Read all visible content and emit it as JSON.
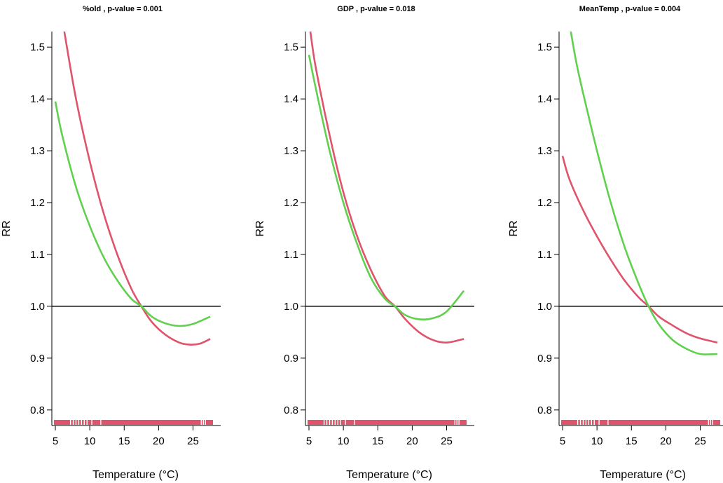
{
  "colors": {
    "red": "#DF536B",
    "green": "#61D04F",
    "axis": "#000000",
    "rug": "#DF536B",
    "rug_gap": "#ffffff"
  },
  "chart_data": [
    {
      "type": "line",
      "title": "%old , p-value =  0.001",
      "xlabel": "Temperature (°C)",
      "ylabel": "RR",
      "xlim": [
        5,
        28
      ],
      "ylim": [
        0.77,
        1.53
      ],
      "x_ticks": [
        5,
        10,
        15,
        20,
        25
      ],
      "x_tick_labels": [
        "5",
        "10",
        "15",
        "20",
        "25"
      ],
      "y_ticks": [
        0.8,
        0.9,
        1.0,
        1.1,
        1.2,
        1.3,
        1.4,
        1.5
      ],
      "y_tick_labels": [
        "0.8",
        "0.9",
        "1.0",
        "1.1",
        "1.2",
        "1.3",
        "1.4",
        "1.5"
      ],
      "reference_line": 1.0,
      "rug": {
        "range": [
          5,
          27.7
        ],
        "gaps": [
          7.2,
          7.6,
          8.0,
          8.4,
          8.8,
          9.2,
          9.6,
          10.3,
          11.6,
          26.2,
          26.5,
          26.8
        ]
      },
      "series": [
        {
          "color": "red",
          "x": [
            6.3,
            8,
            10,
            12,
            14,
            16,
            17.5,
            19,
            21,
            23,
            24.5,
            26,
            27.5
          ],
          "y": [
            1.53,
            1.4,
            1.28,
            1.18,
            1.1,
            1.035,
            1.0,
            0.97,
            0.945,
            0.93,
            0.926,
            0.928,
            0.937
          ]
        },
        {
          "color": "green",
          "x": [
            5,
            6,
            8,
            10,
            12,
            14,
            16,
            17.5,
            19,
            21,
            23,
            25,
            27.5
          ],
          "y": [
            1.395,
            1.33,
            1.23,
            1.155,
            1.095,
            1.05,
            1.015,
            1.0,
            0.98,
            0.967,
            0.962,
            0.966,
            0.98
          ]
        }
      ]
    },
    {
      "type": "line",
      "title": "GDP , p-value =  0.018",
      "xlabel": "Temperature (°C)",
      "ylabel": "RR",
      "xlim": [
        5,
        28
      ],
      "ylim": [
        0.77,
        1.53
      ],
      "x_ticks": [
        5,
        10,
        15,
        20,
        25
      ],
      "x_tick_labels": [
        "5",
        "10",
        "15",
        "20",
        "25"
      ],
      "y_ticks": [
        0.8,
        0.9,
        1.0,
        1.1,
        1.2,
        1.3,
        1.4,
        1.5
      ],
      "y_tick_labels": [
        "0.8",
        "0.9",
        "1.0",
        "1.1",
        "1.2",
        "1.3",
        "1.4",
        "1.5"
      ],
      "reference_line": 1.0,
      "rug": {
        "range": [
          5,
          27.7
        ],
        "gaps": [
          7.2,
          7.6,
          8.0,
          8.4,
          8.8,
          9.2,
          9.6,
          10.3,
          11.6,
          26.2,
          26.5,
          26.8
        ]
      },
      "series": [
        {
          "color": "red",
          "x": [
            5.2,
            6,
            8,
            10,
            12,
            14,
            16,
            17.5,
            19,
            21,
            23,
            25,
            27.5
          ],
          "y": [
            1.53,
            1.46,
            1.33,
            1.22,
            1.135,
            1.07,
            1.02,
            1.0,
            0.975,
            0.95,
            0.935,
            0.93,
            0.937
          ]
        },
        {
          "color": "green",
          "x": [
            5,
            6,
            8,
            10,
            12,
            14,
            16,
            17.5,
            19,
            21,
            23,
            25,
            27.5
          ],
          "y": [
            1.485,
            1.42,
            1.3,
            1.2,
            1.12,
            1.055,
            1.015,
            1.0,
            0.983,
            0.975,
            0.977,
            0.99,
            1.03
          ]
        }
      ]
    },
    {
      "type": "line",
      "title": "MeanTemp , p-value =  0.004",
      "xlabel": "Temperature (°C)",
      "ylabel": "RR",
      "xlim": [
        5,
        28
      ],
      "ylim": [
        0.77,
        1.53
      ],
      "x_ticks": [
        5,
        10,
        15,
        20,
        25
      ],
      "x_tick_labels": [
        "5",
        "10",
        "15",
        "20",
        "25"
      ],
      "y_ticks": [
        0.8,
        0.9,
        1.0,
        1.1,
        1.2,
        1.3,
        1.4,
        1.5
      ],
      "y_tick_labels": [
        "0.8",
        "0.9",
        "1.0",
        "1.1",
        "1.2",
        "1.3",
        "1.4",
        "1.5"
      ],
      "reference_line": 1.0,
      "rug": {
        "range": [
          5,
          27.7
        ],
        "gaps": [
          7.2,
          7.6,
          8.0,
          8.4,
          8.8,
          9.2,
          9.6,
          10.3,
          11.6,
          26.2,
          26.5,
          26.8
        ]
      },
      "series": [
        {
          "color": "red",
          "x": [
            5,
            6,
            8,
            10,
            12,
            14,
            16,
            17.5,
            19,
            21,
            23,
            25,
            27.5
          ],
          "y": [
            1.29,
            1.245,
            1.185,
            1.135,
            1.09,
            1.05,
            1.018,
            1.0,
            0.98,
            0.963,
            0.948,
            0.938,
            0.93
          ]
        },
        {
          "color": "green",
          "x": [
            6.2,
            7,
            8,
            10,
            12,
            14,
            16,
            17.5,
            19,
            21,
            23,
            25,
            27.5
          ],
          "y": [
            1.53,
            1.47,
            1.41,
            1.3,
            1.2,
            1.115,
            1.045,
            1.0,
            0.965,
            0.935,
            0.918,
            0.908,
            0.908
          ]
        }
      ]
    }
  ]
}
